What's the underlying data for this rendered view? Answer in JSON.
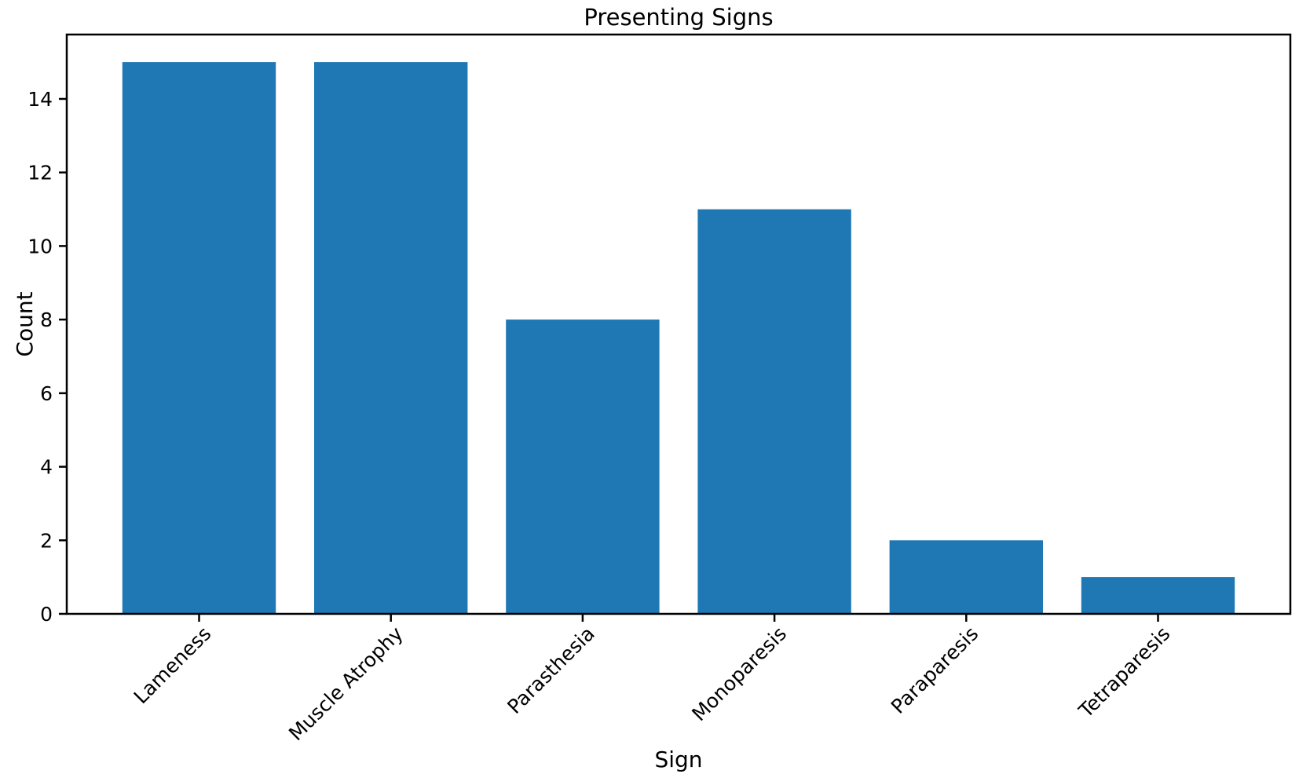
{
  "figure": {
    "background": "#ffffff"
  },
  "chart_data": {
    "type": "bar",
    "title": "Presenting Signs",
    "xlabel": "Sign",
    "ylabel": "Count",
    "categories": [
      "Lameness",
      "Muscle Atrophy",
      "Parasthesia",
      "Monoparesis",
      "Paraparesis",
      "Tetraparesis"
    ],
    "values": [
      15,
      15,
      8,
      11,
      2,
      1
    ],
    "bar_color": "#1f77b4",
    "bar_width": 0.8,
    "xlim": [
      -0.69,
      5.69
    ],
    "ylim": [
      0,
      15.75
    ],
    "yticks": [
      0,
      2,
      4,
      6,
      8,
      10,
      12,
      14
    ],
    "x_tick_rotation_deg": 45,
    "grid": false,
    "legend": "none",
    "text_color": "#000000",
    "spine_color": "#000000"
  }
}
